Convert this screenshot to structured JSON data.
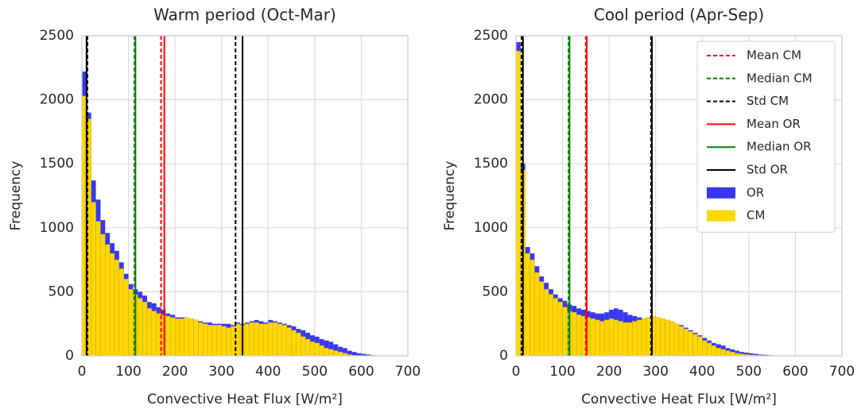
{
  "chart_data": [
    {
      "type": "histogram",
      "title": "Warm period (Oct-Mar)",
      "xlabel": "Convective Heat Flux [W/m²]",
      "ylabel": "Frequency",
      "xlim": [
        0,
        700
      ],
      "ylim": [
        0,
        2500
      ],
      "xticks": [
        0,
        100,
        200,
        300,
        400,
        500,
        600,
        700
      ],
      "yticks": [
        0,
        500,
        1000,
        1500,
        2000,
        2500
      ],
      "grid": true,
      "bins": [
        0,
        10,
        20,
        30,
        40,
        50,
        60,
        70,
        80,
        90,
        100,
        110,
        120,
        130,
        140,
        150,
        160,
        170,
        180,
        190,
        200,
        210,
        220,
        230,
        240,
        250,
        260,
        270,
        280,
        290,
        300,
        310,
        320,
        330,
        340,
        350,
        360,
        370,
        380,
        390,
        400,
        410,
        420,
        430,
        440,
        450,
        460,
        470,
        480,
        490,
        500,
        510,
        520,
        530,
        540,
        550,
        560,
        570,
        580,
        590,
        600,
        610,
        620,
        630,
        640,
        650
      ],
      "series": [
        {
          "name": "OR",
          "color": "#3838f0",
          "values": [
            2220,
            1900,
            1370,
            1220,
            1060,
            960,
            880,
            820,
            730,
            640,
            560,
            520,
            500,
            470,
            420,
            410,
            380,
            360,
            330,
            320,
            300,
            300,
            300,
            290,
            280,
            270,
            260,
            260,
            250,
            250,
            250,
            250,
            240,
            260,
            250,
            260,
            270,
            280,
            270,
            260,
            280,
            270,
            260,
            250,
            240,
            230,
            210,
            200,
            180,
            160,
            150,
            130,
            120,
            110,
            90,
            70,
            60,
            40,
            30,
            20,
            15,
            10,
            5,
            3,
            2
          ]
        },
        {
          "name": "CM",
          "color": "#ffd700",
          "values": [
            2030,
            1850,
            1200,
            1050,
            950,
            870,
            800,
            750,
            680,
            600,
            520,
            480,
            450,
            420,
            370,
            350,
            330,
            320,
            310,
            300,
            290,
            290,
            300,
            290,
            280,
            260,
            250,
            240,
            240,
            240,
            230,
            220,
            230,
            250,
            240,
            250,
            260,
            260,
            250,
            250,
            260,
            260,
            250,
            240,
            220,
            200,
            180,
            150,
            130,
            110,
            100,
            80,
            60,
            50,
            40,
            30,
            20,
            10,
            5,
            3,
            2,
            1,
            0,
            0,
            0
          ]
        }
      ],
      "vlines": [
        {
          "name": "Mean CM",
          "color": "#ff0000",
          "dash": true,
          "values": [
            170
          ]
        },
        {
          "name": "Median CM",
          "color": "#008000",
          "dash": true,
          "values": [
            113
          ]
        },
        {
          "name": "Std CM",
          "color": "#000000",
          "dash": true,
          "values": [
            12,
            330
          ]
        },
        {
          "name": "Mean OR",
          "color": "#ff0000",
          "dash": false,
          "values": [
            177
          ]
        },
        {
          "name": "Median OR",
          "color": "#008000",
          "dash": false,
          "values": [
            115
          ]
        },
        {
          "name": "Std OR",
          "color": "#000000",
          "dash": false,
          "values": [
            10,
            345
          ]
        }
      ]
    },
    {
      "type": "histogram",
      "title": "Cool period (Apr-Sep)",
      "xlabel": "Convective Heat Flux [W/m²]",
      "ylabel": "Frequency",
      "xlim": [
        0,
        700
      ],
      "ylim": [
        0,
        2500
      ],
      "xticks": [
        0,
        100,
        200,
        300,
        400,
        500,
        600,
        700
      ],
      "yticks": [
        0,
        500,
        1000,
        1500,
        2000,
        2500
      ],
      "grid": true,
      "legend": "upper right",
      "bins": [
        0,
        10,
        20,
        30,
        40,
        50,
        60,
        70,
        80,
        90,
        100,
        110,
        120,
        130,
        140,
        150,
        160,
        170,
        180,
        190,
        200,
        210,
        220,
        230,
        240,
        250,
        260,
        270,
        280,
        290,
        300,
        310,
        320,
        330,
        340,
        350,
        360,
        370,
        380,
        390,
        400,
        410,
        420,
        430,
        440,
        450,
        460,
        470,
        480,
        490,
        500,
        510,
        520,
        530,
        540,
        550,
        560,
        570,
        580,
        590,
        600
      ],
      "series": [
        {
          "name": "OR",
          "color": "#3838f0",
          "values": [
            2450,
            1500,
            850,
            800,
            700,
            620,
            570,
            520,
            480,
            450,
            430,
            400,
            390,
            370,
            360,
            350,
            340,
            330,
            330,
            340,
            360,
            370,
            360,
            340,
            320,
            310,
            300,
            290,
            290,
            300,
            290,
            280,
            270,
            260,
            250,
            240,
            220,
            200,
            180,
            160,
            140,
            120,
            100,
            90,
            80,
            60,
            50,
            40,
            30,
            25,
            20,
            15,
            10,
            8,
            5,
            3,
            2,
            1,
            1,
            0
          ]
        },
        {
          "name": "CM",
          "color": "#ffd700",
          "values": [
            2380,
            1450,
            800,
            750,
            650,
            580,
            520,
            480,
            450,
            420,
            380,
            350,
            340,
            320,
            310,
            300,
            290,
            280,
            270,
            280,
            290,
            280,
            270,
            260,
            260,
            270,
            280,
            290,
            300,
            310,
            300,
            290,
            280,
            270,
            250,
            230,
            210,
            190,
            170,
            150,
            120,
            100,
            80,
            60,
            50,
            40,
            30,
            20,
            15,
            10,
            8,
            5,
            3,
            2,
            1,
            1,
            0,
            0,
            0,
            0
          ]
        }
      ],
      "vlines": [
        {
          "name": "Mean CM",
          "color": "#ff0000",
          "dash": true,
          "values": [
            150
          ]
        },
        {
          "name": "Median CM",
          "color": "#008000",
          "dash": true,
          "values": [
            113
          ]
        },
        {
          "name": "Std CM",
          "color": "#000000",
          "dash": true,
          "values": [
            12,
            290
          ]
        },
        {
          "name": "Mean OR",
          "color": "#ff0000",
          "dash": false,
          "values": [
            152
          ]
        },
        {
          "name": "Median OR",
          "color": "#008000",
          "dash": false,
          "values": [
            115
          ]
        },
        {
          "name": "Std OR",
          "color": "#000000",
          "dash": false,
          "values": [
            15,
            292
          ]
        }
      ]
    }
  ]
}
